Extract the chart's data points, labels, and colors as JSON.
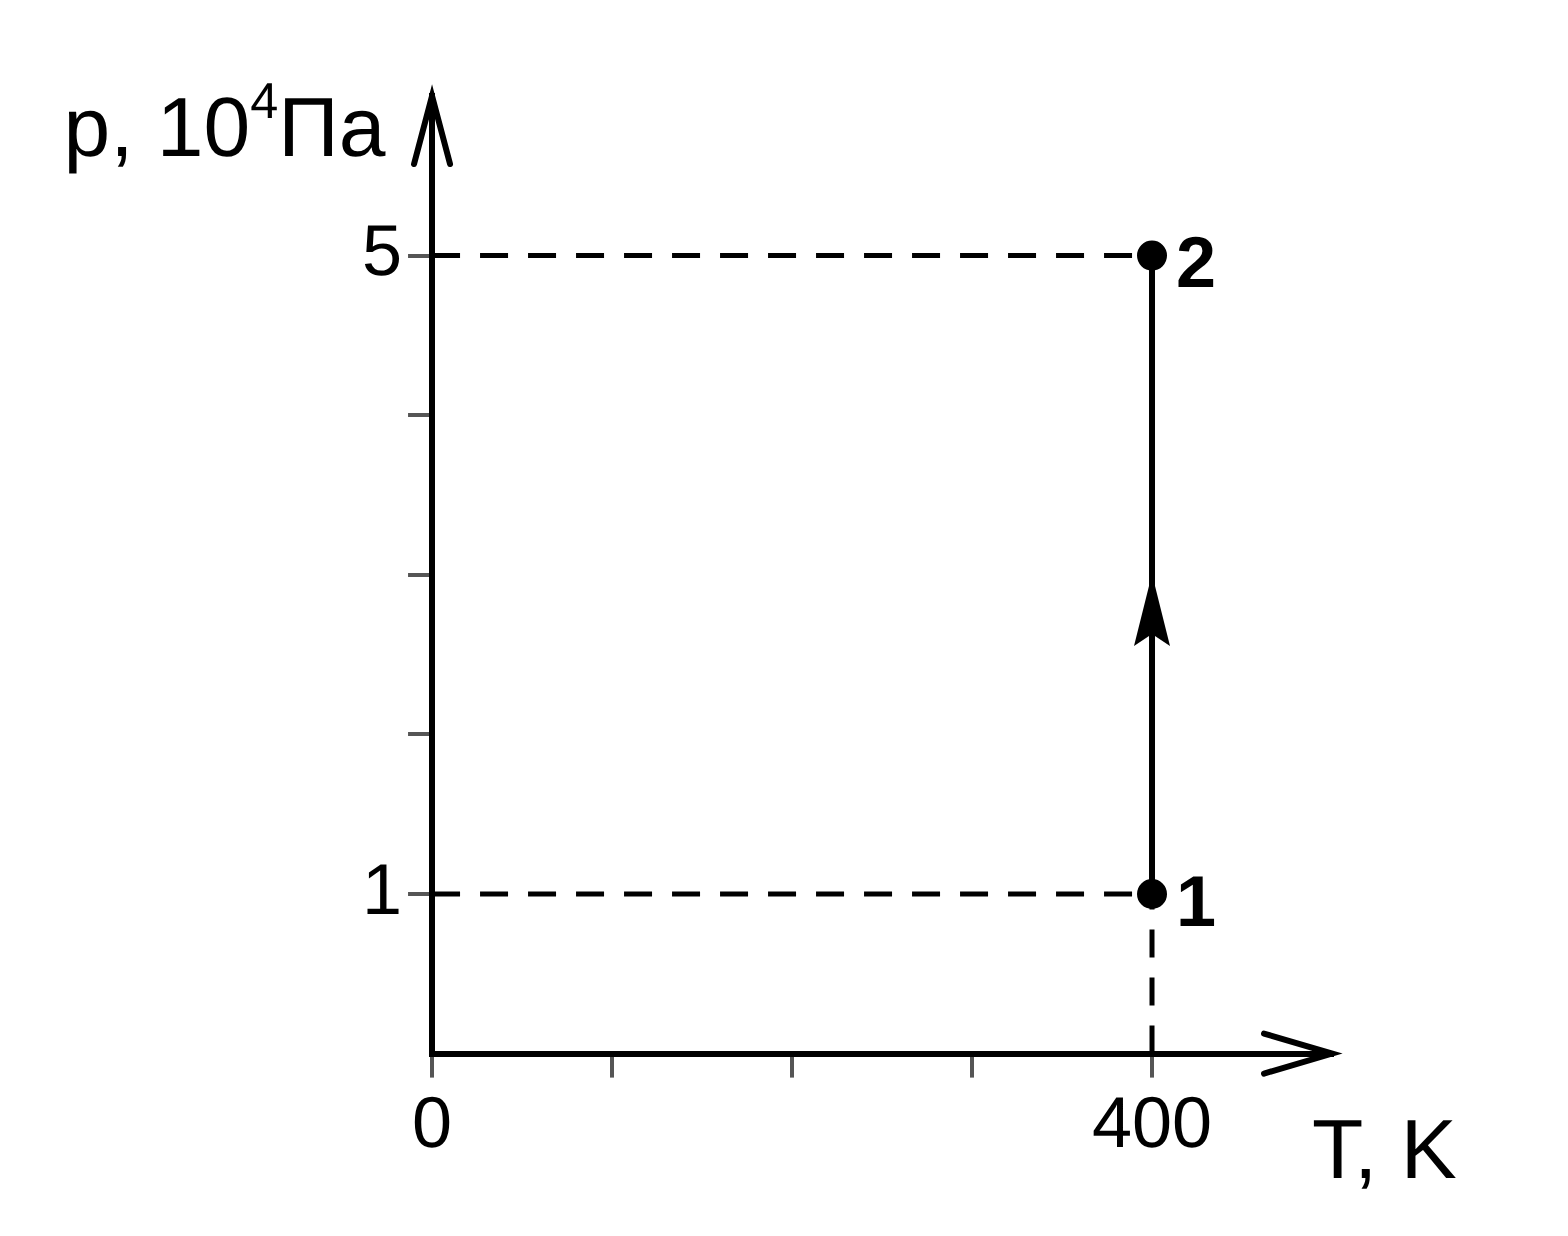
{
  "chart_data": {
    "type": "line",
    "xlabel": "T, K",
    "ylabel": "p, 10$^{4}$Па",
    "xlim": [
      0,
      500
    ],
    "ylim": [
      0,
      6
    ],
    "xticks": [
      0,
      {
        "value": 100,
        "label": null
      },
      {
        "value": 200,
        "label": null
      },
      {
        "value": 300,
        "label": null
      },
      400
    ],
    "yticks": [
      1,
      {
        "value": 2,
        "label": null
      },
      {
        "value": 3,
        "label": null
      },
      {
        "value": 4,
        "label": null
      },
      5
    ],
    "series": [
      {
        "color": "#000000",
        "x": [
          400,
          400
        ],
        "values": [
          1,
          5
        ]
      }
    ],
    "marker": "circle",
    "line_style": "solid",
    "grid": false,
    "legend": false,
    "ref_lines": [
      {
        "axis": "y",
        "value": 1,
        "color": "#000000",
        "line_style": "dashed"
      },
      {
        "axis": "y",
        "value": 5,
        "color": "#000000",
        "line_style": "dashed"
      },
      {
        "axis": "x",
        "value": 400,
        "color": "#000000",
        "line_style": "dashed"
      }
    ],
    "annotations": [
      {
        "text": "1",
        "x": 400,
        "y": 1
      },
      {
        "text": "2",
        "x": 400,
        "y": 5
      }
    ]
  }
}
